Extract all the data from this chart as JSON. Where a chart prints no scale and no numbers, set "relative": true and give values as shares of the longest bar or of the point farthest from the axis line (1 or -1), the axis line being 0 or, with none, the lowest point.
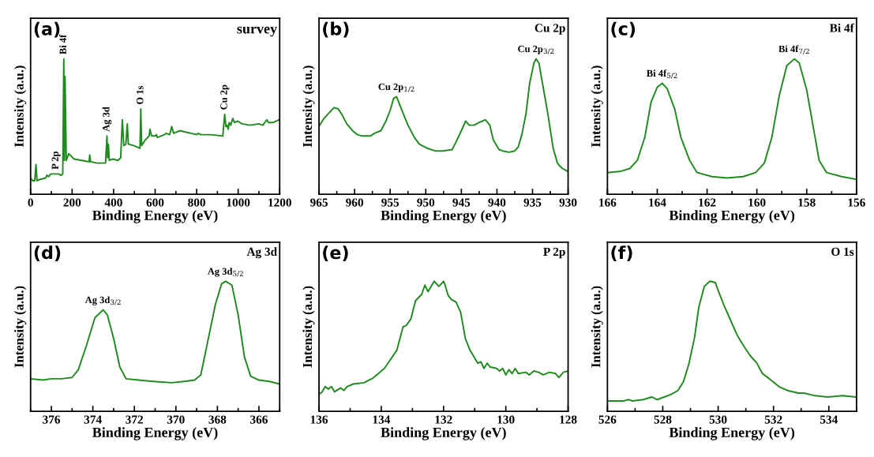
{
  "chart_data": [
    {
      "type": "line",
      "relative": true,
      "title": "survey",
      "xlabel": "Binding Energy (eV)",
      "ylabel": "Intensity (a.u.)",
      "tick_labels": "x",
      "xlim": [
        0,
        1200
      ],
      "xticks": [
        0,
        200,
        400,
        600,
        800,
        1000,
        1200,
        {
          "value": 100,
          "label": null
        },
        {
          "value": 300,
          "label": null
        },
        {
          "value": 500,
          "label": null
        },
        {
          "value": 700,
          "label": null
        },
        {
          "value": 900,
          "label": null
        },
        {
          "value": 1100,
          "label": null
        }
      ],
      "annotations": [
        "(a)",
        {
          "text": "P 2p",
          "x": 122,
          "y": 0.15
        },
        {
          "text": "Bi 4f",
          "x": 160,
          "y": 1.0
        },
        {
          "text": "Ag 3d",
          "x": 368,
          "y": 0.43
        },
        {
          "text": "O 1s",
          "x": 531,
          "y": 0.63
        },
        {
          "text": "Cu 2p",
          "x": 935,
          "y": 0.59
        }
      ],
      "series": [
        {
          "color": "#1f8b1f",
          "x": [
            0,
            10,
            20,
            26,
            31,
            47,
            72,
            79,
            87,
            97,
            122,
            135,
            147,
            155,
            160,
            163,
            166,
            172,
            184,
            209,
            247,
            282,
            285,
            289,
            321,
            361,
            368,
            371,
            375,
            379,
            396,
            421,
            434,
            442,
            449,
            459,
            466,
            471,
            496,
            527,
            531,
            535,
            552,
            571,
            575,
            583,
            602,
            606,
            611,
            645,
            652,
            670,
            680,
            689,
            720,
            745,
            801,
            807,
            820,
            870,
            926,
            935,
            941,
            947,
            952,
            957,
            964,
            974,
            982,
            998,
            1019,
            1057,
            1100,
            1119,
            1138,
            1146,
            1169,
            1196
          ],
          "values": [
            0.12,
            0.1,
            0.1,
            0.22,
            0.1,
            0.11,
            0.12,
            0.14,
            0.13,
            0.15,
            0.15,
            0.15,
            0.14,
            0.15,
            1.0,
            0.25,
            0.87,
            0.25,
            0.3,
            0.26,
            0.25,
            0.24,
            0.29,
            0.24,
            0.23,
            0.23,
            0.43,
            0.27,
            0.37,
            0.25,
            0.26,
            0.25,
            0.27,
            0.55,
            0.36,
            0.37,
            0.52,
            0.37,
            0.36,
            0.34,
            0.63,
            0.36,
            0.4,
            0.43,
            0.48,
            0.43,
            0.43,
            0.44,
            0.42,
            0.44,
            0.45,
            0.44,
            0.5,
            0.45,
            0.47,
            0.46,
            0.44,
            0.45,
            0.44,
            0.44,
            0.43,
            0.59,
            0.5,
            0.51,
            0.48,
            0.53,
            0.51,
            0.56,
            0.53,
            0.54,
            0.52,
            0.51,
            0.52,
            0.51,
            0.55,
            0.53,
            0.53,
            0.55
          ]
        }
      ]
    },
    {
      "type": "line",
      "relative": true,
      "title": "Cu 2p",
      "xlabel": "Binding Energy (eV)",
      "ylabel": "Intensity (a.u.)",
      "tick_labels": "x",
      "xlim": [
        965,
        930
      ],
      "xticks": [
        965,
        960,
        955,
        950,
        945,
        940,
        935,
        930,
        {
          "value": 962.5,
          "label": null
        },
        {
          "value": 957.5,
          "label": null
        },
        {
          "value": 952.5,
          "label": null
        },
        {
          "value": 947.5,
          "label": null
        },
        {
          "value": 942.5,
          "label": null
        },
        {
          "value": 937.5,
          "label": null
        },
        {
          "value": 932.5,
          "label": null
        }
      ],
      "annotations": [
        "(b)",
        {
          "text": "Cu 2p$_{1/2}$",
          "x": 954.1,
          "y": 0.72
        },
        {
          "text": "Cu 2p$_{3/2}$",
          "x": 934.5,
          "y": 1.0
        }
      ],
      "series": [
        {
          "color": "#1f8b1f",
          "x": [
            964.9,
            964.3,
            963.6,
            962.9,
            962.3,
            961.8,
            961.1,
            960.3,
            959.6,
            958.9,
            957.8,
            957.2,
            956.3,
            955.6,
            955.0,
            954.5,
            954.1,
            953.8,
            953.2,
            952.5,
            951.6,
            950.9,
            949.8,
            948.7,
            947.6,
            946.3,
            945.8,
            945.0,
            944.4,
            943.9,
            943.2,
            942.5,
            941.6,
            941.0,
            940.5,
            939.7,
            939.2,
            938.3,
            937.5,
            937.0,
            936.5,
            935.9,
            935.4,
            934.8,
            934.5,
            934.1,
            933.6,
            932.8,
            932.1,
            931.5,
            931.2,
            930.8,
            930.1
          ],
          "values": [
            0.51,
            0.56,
            0.6,
            0.64,
            0.63,
            0.59,
            0.52,
            0.47,
            0.44,
            0.43,
            0.43,
            0.45,
            0.47,
            0.54,
            0.62,
            0.71,
            0.72,
            0.68,
            0.6,
            0.51,
            0.42,
            0.37,
            0.34,
            0.32,
            0.32,
            0.33,
            0.38,
            0.47,
            0.54,
            0.51,
            0.51,
            0.53,
            0.55,
            0.51,
            0.4,
            0.33,
            0.32,
            0.31,
            0.32,
            0.35,
            0.44,
            0.6,
            0.82,
            0.97,
            1.0,
            0.97,
            0.82,
            0.58,
            0.34,
            0.23,
            0.21,
            0.19,
            0.17
          ]
        }
      ]
    },
    {
      "type": "line",
      "relative": true,
      "title": "Bi 4f",
      "xlabel": "Binding Energy (eV)",
      "ylabel": "Intensity (a.u.)",
      "tick_labels": "x",
      "xlim": [
        166,
        156
      ],
      "xticks": [
        166,
        164,
        162,
        160,
        158,
        156,
        {
          "value": 165,
          "label": null
        },
        {
          "value": 163,
          "label": null
        },
        {
          "value": 161,
          "label": null
        },
        {
          "value": 159,
          "label": null
        },
        {
          "value": 157,
          "label": null
        }
      ],
      "annotations": [
        "(c)",
        {
          "text": "Bi 4f$_{5/2}$",
          "x": 163.8,
          "y": 0.82
        },
        {
          "text": "Bi 4f$_{7/2}$",
          "x": 158.5,
          "y": 1.0
        }
      ],
      "series": [
        {
          "color": "#1f8b1f",
          "x": [
            166.0,
            165.45,
            165.1,
            164.8,
            164.5,
            164.25,
            164.0,
            163.8,
            163.6,
            163.3,
            163.05,
            162.7,
            162.4,
            161.8,
            161.2,
            160.55,
            160.05,
            159.7,
            159.4,
            159.1,
            158.8,
            158.5,
            158.3,
            158.0,
            157.75,
            157.5,
            157.2,
            156.6,
            156.0
          ],
          "values": [
            0.16,
            0.17,
            0.19,
            0.25,
            0.42,
            0.68,
            0.79,
            0.82,
            0.78,
            0.63,
            0.42,
            0.25,
            0.16,
            0.13,
            0.12,
            0.13,
            0.16,
            0.23,
            0.42,
            0.73,
            0.95,
            1.0,
            0.97,
            0.77,
            0.51,
            0.25,
            0.16,
            0.13,
            0.11
          ]
        }
      ]
    },
    {
      "type": "line",
      "relative": true,
      "title": "Ag 3d",
      "xlabel": "Binding Energy (eV)",
      "ylabel": "Intensity (a.u.)",
      "tick_labels": "x",
      "xlim": [
        377,
        365
      ],
      "xticks": [
        376,
        374,
        372,
        370,
        368,
        366,
        {
          "value": 377,
          "label": null
        },
        {
          "value": 375,
          "label": null
        },
        {
          "value": 373,
          "label": null
        },
        {
          "value": 371,
          "label": null
        },
        {
          "value": 369,
          "label": null
        },
        {
          "value": 367,
          "label": null
        },
        {
          "value": 365,
          "label": null
        }
      ],
      "annotations": [
        "(d)",
        {
          "text": "Ag 3d$_{3/2}$",
          "x": 373.5,
          "y": 0.78
        },
        {
          "text": "Ag 3d$_{5/2}$",
          "x": 367.6,
          "y": 1.0
        }
      ],
      "series": [
        {
          "color": "#1f8b1f",
          "x": [
            377.0,
            376.4,
            376.0,
            375.5,
            375.0,
            374.7,
            374.3,
            373.9,
            373.5,
            373.3,
            373.0,
            372.7,
            372.4,
            371.8,
            371.1,
            370.2,
            369.6,
            369.1,
            368.8,
            368.5,
            368.1,
            367.8,
            367.6,
            367.3,
            367.0,
            366.7,
            366.4,
            366.0,
            365.5,
            365.0
          ],
          "values": [
            0.25,
            0.24,
            0.25,
            0.25,
            0.26,
            0.32,
            0.51,
            0.72,
            0.78,
            0.74,
            0.56,
            0.34,
            0.25,
            0.24,
            0.23,
            0.22,
            0.23,
            0.24,
            0.28,
            0.51,
            0.82,
            0.98,
            1.0,
            0.97,
            0.74,
            0.42,
            0.27,
            0.24,
            0.23,
            0.21
          ]
        }
      ]
    },
    {
      "type": "line",
      "relative": true,
      "title": "P 2p",
      "xlabel": "Binding Energy (eV)",
      "ylabel": "Intensity (a.u.)",
      "tick_labels": "x",
      "xlim": [
        136,
        128
      ],
      "xticks": [
        136,
        134,
        132,
        130,
        128,
        {
          "value": 135,
          "label": null
        },
        {
          "value": 133,
          "label": null
        },
        {
          "value": 131,
          "label": null
        },
        {
          "value": 129,
          "label": null
        }
      ],
      "annotations": [
        "(e)"
      ],
      "series": [
        {
          "color": "#1f8b1f",
          "x": [
            136.0,
            135.9,
            135.8,
            135.7,
            135.6,
            135.5,
            135.3,
            135.2,
            135.1,
            134.9,
            134.55,
            134.4,
            134.3,
            134.05,
            133.9,
            133.7,
            133.5,
            133.3,
            133.2,
            133.05,
            132.9,
            132.7,
            132.6,
            132.5,
            132.3,
            132.15,
            132.0,
            131.95,
            131.85,
            131.75,
            131.6,
            131.45,
            131.3,
            131.15,
            131.0,
            130.9,
            130.8,
            130.7,
            130.6,
            130.5,
            130.3,
            130.2,
            130.1,
            130.0,
            129.9,
            129.8,
            129.7,
            129.6,
            129.35,
            129.25,
            129.1,
            128.95,
            128.8,
            128.6,
            128.4,
            128.3,
            128.15,
            128.0
          ],
          "values": [
            0.13,
            0.15,
            0.19,
            0.17,
            0.19,
            0.15,
            0.18,
            0.16,
            0.19,
            0.21,
            0.22,
            0.24,
            0.25,
            0.3,
            0.33,
            0.4,
            0.47,
            0.65,
            0.66,
            0.71,
            0.85,
            0.9,
            0.97,
            0.92,
            1.0,
            0.96,
            1.0,
            0.97,
            0.89,
            0.86,
            0.84,
            0.76,
            0.56,
            0.47,
            0.41,
            0.37,
            0.38,
            0.33,
            0.37,
            0.34,
            0.33,
            0.31,
            0.33,
            0.28,
            0.32,
            0.29,
            0.33,
            0.29,
            0.3,
            0.28,
            0.31,
            0.3,
            0.28,
            0.3,
            0.29,
            0.26,
            0.3,
            0.31
          ]
        }
      ]
    },
    {
      "type": "line",
      "relative": true,
      "title": "O 1s",
      "xlabel": "Binding Energy (eV)",
      "ylabel": "Intensity (a.u.)",
      "tick_labels": "x",
      "xlim": [
        526,
        535
      ],
      "xticks": [
        526,
        528,
        530,
        532,
        534,
        {
          "value": 527,
          "label": null
        },
        {
          "value": 529,
          "label": null
        },
        {
          "value": 531,
          "label": null
        },
        {
          "value": 533,
          "label": null
        },
        {
          "value": 535,
          "label": null
        }
      ],
      "annotations": [
        "(f)"
      ],
      "series": [
        {
          "color": "#1f8b1f",
          "x": [
            526.05,
            526.6,
            526.75,
            526.9,
            527.3,
            527.6,
            527.8,
            528.05,
            528.3,
            528.55,
            528.75,
            528.95,
            529.15,
            529.3,
            529.5,
            529.7,
            529.9,
            530.0,
            530.2,
            530.45,
            530.7,
            530.9,
            531.15,
            531.4,
            531.6,
            531.85,
            532.2,
            532.5,
            532.9,
            533.1,
            533.5,
            533.95,
            534.5,
            534.95
          ],
          "values": [
            0.08,
            0.08,
            0.09,
            0.08,
            0.09,
            0.11,
            0.09,
            0.11,
            0.13,
            0.16,
            0.23,
            0.37,
            0.57,
            0.8,
            0.96,
            1.0,
            0.99,
            0.93,
            0.82,
            0.7,
            0.58,
            0.51,
            0.43,
            0.37,
            0.29,
            0.25,
            0.19,
            0.16,
            0.14,
            0.14,
            0.12,
            0.11,
            0.12,
            0.11
          ]
        }
      ]
    }
  ]
}
